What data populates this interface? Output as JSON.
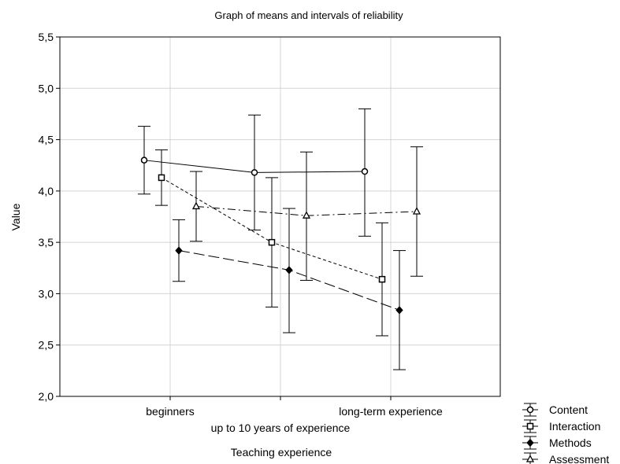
{
  "chart_data": {
    "type": "line",
    "title": "Graph of means and intervals of reliability",
    "xlabel": "Teaching experience",
    "ylabel": "Value",
    "categories": [
      "beginners",
      "up to 10 years of experience",
      "long-term experience"
    ],
    "ylim": [
      2.0,
      5.5
    ],
    "yticks": [
      "2,0",
      "2,5",
      "3,0",
      "3,5",
      "4,0",
      "4,5",
      "5,0",
      "5,5"
    ],
    "grid": true,
    "legend_position": "bottom-right",
    "error_bars": true,
    "series": [
      {
        "name": "Content",
        "marker": "circle",
        "dash": "solid",
        "values": [
          4.3,
          4.18,
          4.19
        ],
        "lower": [
          3.97,
          3.62,
          3.56
        ],
        "upper": [
          4.63,
          4.74,
          4.8
        ]
      },
      {
        "name": "Interaction",
        "marker": "square",
        "dash": "short-dash",
        "values": [
          4.13,
          3.5,
          3.14
        ],
        "lower": [
          3.86,
          2.87,
          2.59
        ],
        "upper": [
          4.4,
          4.13,
          3.69
        ]
      },
      {
        "name": "Methods",
        "marker": "diamond",
        "dash": "long-dash",
        "values": [
          3.42,
          3.23,
          2.84
        ],
        "lower": [
          3.12,
          2.62,
          2.26
        ],
        "upper": [
          3.72,
          3.83,
          3.42
        ]
      },
      {
        "name": "Assessment",
        "marker": "triangle",
        "dash": "dash-dot",
        "values": [
          3.85,
          3.76,
          3.8
        ],
        "lower": [
          3.51,
          3.13,
          3.17
        ],
        "upper": [
          4.19,
          4.38,
          4.43
        ]
      }
    ]
  }
}
